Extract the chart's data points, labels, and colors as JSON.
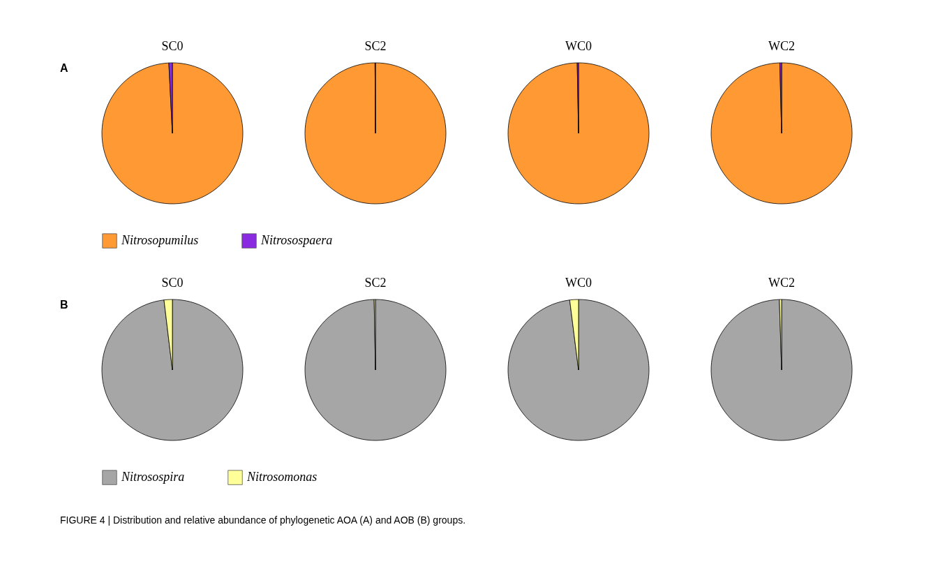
{
  "chart_data": [
    {
      "type": "pie",
      "title": "SC0",
      "categories": [
        "Nitrosopumilus",
        "Nitrosospaera"
      ],
      "values": [
        99.2,
        0.8
      ],
      "colors": [
        "#ff9933",
        "#8a2be2"
      ],
      "legend": "bottom",
      "annotations": [
        "A"
      ]
    },
    {
      "type": "pie",
      "title": "SC2",
      "categories": [
        null,
        null
      ],
      "values": [
        99.9,
        0.1
      ],
      "colors": [
        "#ff9933",
        "#8a2be2"
      ]
    },
    {
      "type": "pie",
      "title": "WC0",
      "categories": [
        null,
        null
      ],
      "values": [
        99.7,
        0.3
      ],
      "colors": [
        "#ff9933",
        "#8a2be2"
      ]
    },
    {
      "type": "pie",
      "title": "WC2",
      "categories": [
        null,
        null
      ],
      "values": [
        99.6,
        0.4
      ],
      "colors": [
        "#ff9933",
        "#8a2be2"
      ]
    },
    {
      "type": "pie",
      "title": "SC0",
      "categories": [
        "Nitrosospira",
        "Nitrosomonas"
      ],
      "values": [
        98.1,
        1.9
      ],
      "colors": [
        "#a6a6a6",
        "#ffff99"
      ],
      "legend": "bottom",
      "annotations": [
        "B",
        "FIGURE 4 | Distribution and relative abundance of phylogenetic AOA (A) and AOB (B) groups."
      ]
    },
    {
      "type": "pie",
      "title": "SC2",
      "categories": [
        null,
        null
      ],
      "values": [
        99.7,
        0.3
      ],
      "colors": [
        "#a6a6a6",
        "#ffff99"
      ]
    },
    {
      "type": "pie",
      "title": "WC0",
      "categories": [
        null,
        null
      ],
      "values": [
        98.0,
        2.0
      ],
      "colors": [
        "#a6a6a6",
        "#ffff99"
      ]
    },
    {
      "type": "pie",
      "title": "WC2",
      "categories": [
        null,
        null
      ],
      "values": [
        99.5,
        0.5
      ],
      "colors": [
        "#a6a6a6",
        "#ffff99"
      ]
    }
  ]
}
